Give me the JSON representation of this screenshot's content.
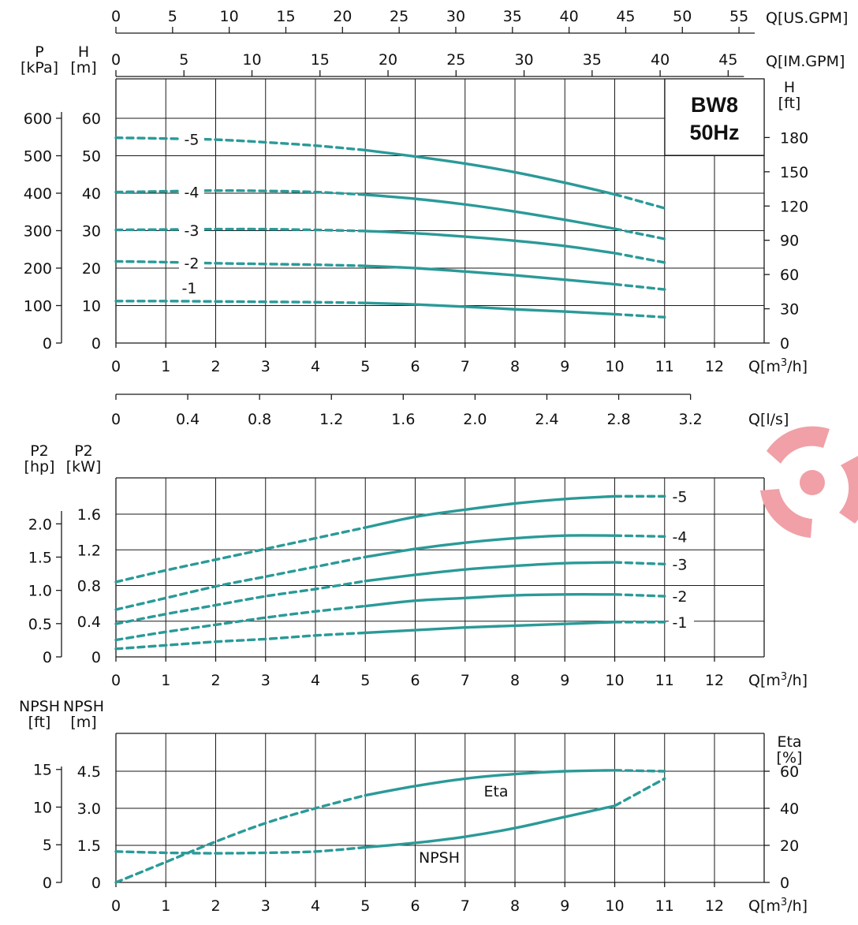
{
  "title": {
    "line1": "BW8",
    "line2": "50Hz"
  },
  "curve_color": "#2a9a98",
  "logo": {
    "name": "pump-logo-icon",
    "color": "#f0a0a6"
  },
  "chart_data": [
    {
      "type": "line",
      "name": "head",
      "x_unit": "Q[m³/h]",
      "xlim": [
        0,
        12
      ],
      "x_ticks": [
        0,
        1,
        2,
        3,
        4,
        5,
        6,
        7,
        8,
        9,
        10,
        11,
        12
      ],
      "y_left_unit": [
        "H",
        "[m]"
      ],
      "y_left_ticks": [
        0,
        10,
        20,
        30,
        40,
        50,
        60
      ],
      "y_left_range": [
        0,
        60
      ],
      "y_left2_unit": [
        "P",
        "[kPa]"
      ],
      "y_left2_ticks": [
        0,
        100,
        200,
        300,
        400,
        500,
        600
      ],
      "y_right_unit": [
        "H",
        "[ft]"
      ],
      "y_right_ticks": [
        0,
        30,
        60,
        90,
        120,
        150,
        180
      ],
      "top_axes": [
        {
          "unit": "Q[US.GPM]",
          "ticks": [
            0,
            5,
            10,
            15,
            20,
            25,
            30,
            35,
            40,
            45,
            50,
            55
          ],
          "per_m3h": 4.4029
        },
        {
          "unit": "Q[IM.GPM]",
          "ticks": [
            0,
            5,
            10,
            15,
            20,
            25,
            30,
            35,
            40,
            45
          ],
          "per_m3h": 3.6662
        }
      ],
      "bottom_axis2": {
        "unit": "Q[l/s]",
        "ticks": [
          "0",
          "0.4",
          "0.8",
          "1.2",
          "1.6",
          "2.0",
          "2.4",
          "2.8",
          "3.2"
        ],
        "per_m3h": 0.27778
      },
      "grid": true,
      "series": [
        {
          "name": "-5",
          "x": [
            0,
            1,
            2,
            3,
            4,
            5,
            6,
            7,
            8,
            9,
            10,
            11
          ],
          "y": [
            54.8,
            54.6,
            54.3,
            53.6,
            52.7,
            51.5,
            49.8,
            47.9,
            45.6,
            42.8,
            39.7,
            36.0
          ],
          "solid_from": 5,
          "solid_to": 10
        },
        {
          "name": "-4",
          "x": [
            0,
            1,
            2,
            3,
            4,
            5,
            6,
            7,
            8,
            9,
            10,
            11
          ],
          "y": [
            40.3,
            40.5,
            40.7,
            40.6,
            40.3,
            39.6,
            38.5,
            37.0,
            35.1,
            32.9,
            30.5,
            27.8
          ],
          "solid_from": 5,
          "solid_to": 10
        },
        {
          "name": "-3",
          "x": [
            0,
            1,
            2,
            3,
            4,
            5,
            6,
            7,
            8,
            9,
            10,
            11
          ],
          "y": [
            30.2,
            30.3,
            30.4,
            30.4,
            30.2,
            29.9,
            29.3,
            28.4,
            27.3,
            25.9,
            24.0,
            21.5
          ],
          "solid_from": 5,
          "solid_to": 10
        },
        {
          "name": "-2",
          "x": [
            0,
            1,
            2,
            3,
            4,
            5,
            6,
            7,
            8,
            9,
            10,
            11
          ],
          "y": [
            21.8,
            21.6,
            21.3,
            21.1,
            20.9,
            20.6,
            20.0,
            19.1,
            18.1,
            16.9,
            15.7,
            14.3
          ],
          "solid_from": 5,
          "solid_to": 10
        },
        {
          "name": "-1",
          "x": [
            0,
            1,
            2,
            3,
            4,
            5,
            6,
            7,
            8,
            9,
            10,
            11
          ],
          "y": [
            11.2,
            11.2,
            11.1,
            11.0,
            10.9,
            10.7,
            10.3,
            9.7,
            9.0,
            8.4,
            7.7,
            6.9
          ],
          "solid_from": 5,
          "solid_to": 10
        }
      ]
    },
    {
      "type": "line",
      "name": "power",
      "x_unit": "Q[m³/h]",
      "xlim": [
        0,
        12
      ],
      "x_ticks": [
        0,
        1,
        2,
        3,
        4,
        5,
        6,
        7,
        8,
        9,
        10,
        11,
        12
      ],
      "y_left_unit": [
        "P2",
        "[kW]"
      ],
      "y_left_ticks": [
        "0",
        "0.4",
        "0.8",
        "1.2",
        "1.6"
      ],
      "y_left_range": [
        0,
        2.0
      ],
      "y_left2_unit": [
        "P2",
        "[hp]"
      ],
      "y_left2_ticks": [
        "0",
        "0.5",
        "1.0",
        "1.5",
        "2.0"
      ],
      "grid": true,
      "series": [
        {
          "name": "-5",
          "x": [
            0,
            1,
            2,
            3,
            4,
            5,
            6,
            7,
            8,
            9,
            10,
            11
          ],
          "y": [
            0.84,
            0.97,
            1.09,
            1.21,
            1.33,
            1.45,
            1.57,
            1.65,
            1.72,
            1.77,
            1.8,
            1.8
          ],
          "solid_from": 5,
          "solid_to": 10
        },
        {
          "name": "-4",
          "x": [
            0,
            1,
            2,
            3,
            4,
            5,
            6,
            7,
            8,
            9,
            10,
            11
          ],
          "y": [
            0.53,
            0.66,
            0.79,
            0.9,
            1.01,
            1.12,
            1.21,
            1.28,
            1.33,
            1.36,
            1.36,
            1.35
          ],
          "solid_from": 5,
          "solid_to": 10
        },
        {
          "name": "-3",
          "x": [
            0,
            1,
            2,
            3,
            4,
            5,
            6,
            7,
            8,
            9,
            10,
            11
          ],
          "y": [
            0.37,
            0.48,
            0.58,
            0.68,
            0.76,
            0.85,
            0.92,
            0.98,
            1.02,
            1.05,
            1.06,
            1.04
          ],
          "solid_from": 5,
          "solid_to": 10
        },
        {
          "name": "-2",
          "x": [
            0,
            1,
            2,
            3,
            4,
            5,
            6,
            7,
            8,
            9,
            10,
            11
          ],
          "y": [
            0.19,
            0.28,
            0.36,
            0.44,
            0.51,
            0.57,
            0.63,
            0.66,
            0.69,
            0.7,
            0.7,
            0.68
          ],
          "solid_from": 5,
          "solid_to": 10
        },
        {
          "name": "-1",
          "x": [
            0,
            1,
            2,
            3,
            4,
            5,
            6,
            7,
            8,
            9,
            10,
            11
          ],
          "y": [
            0.09,
            0.13,
            0.17,
            0.2,
            0.24,
            0.27,
            0.3,
            0.33,
            0.35,
            0.37,
            0.39,
            0.39
          ],
          "solid_from": 5,
          "solid_to": 10
        }
      ]
    },
    {
      "type": "line",
      "name": "npsh-eta",
      "x_unit": "Q[m³/h]",
      "xlim": [
        0,
        12
      ],
      "x_ticks": [
        0,
        1,
        2,
        3,
        4,
        5,
        6,
        7,
        8,
        9,
        10,
        11,
        12
      ],
      "y_left_unit": [
        "NPSH",
        "[m]"
      ],
      "y_left_ticks": [
        "0",
        "1.5",
        "3.0",
        "4.5"
      ],
      "y_left_range": [
        0,
        6.0
      ],
      "y_left2_unit": [
        "NPSH",
        "[ft]"
      ],
      "y_left2_ticks": [
        "0",
        "5",
        "10",
        "15"
      ],
      "y_right_unit": [
        "Eta",
        "[%]"
      ],
      "y_right_ticks": [
        0,
        20,
        40,
        60
      ],
      "y_right_range": [
        0,
        80
      ],
      "grid": true,
      "series": [
        {
          "name": "Eta",
          "axis": "right",
          "x": [
            0,
            1,
            2,
            3,
            4,
            5,
            6,
            7,
            8,
            9,
            10,
            11
          ],
          "y": [
            0,
            11,
            22,
            32,
            40,
            47,
            52,
            56,
            58.5,
            60,
            60.5,
            60
          ],
          "solid_from": 5,
          "solid_to": 10
        },
        {
          "name": "NPSH",
          "axis": "left",
          "x": [
            0,
            1,
            2,
            3,
            4,
            5,
            6,
            7,
            8,
            9,
            10,
            11
          ],
          "y": [
            1.25,
            1.2,
            1.18,
            1.2,
            1.25,
            1.42,
            1.6,
            1.85,
            2.2,
            2.65,
            3.1,
            4.2
          ],
          "solid_from": 5,
          "solid_to": 10
        }
      ]
    }
  ]
}
